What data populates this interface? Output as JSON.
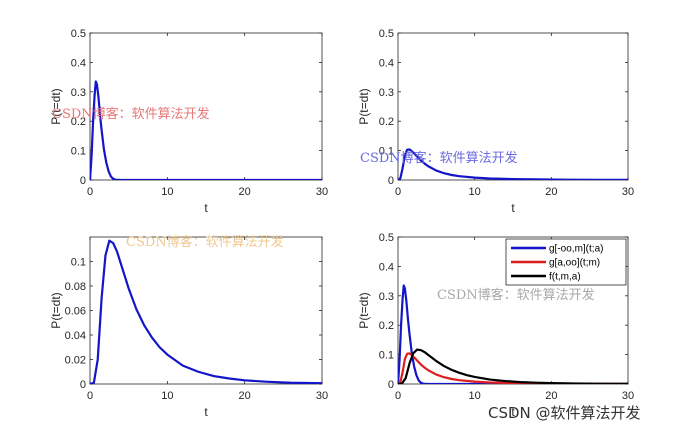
{
  "colors": {
    "blue": "#1414c8",
    "red": "#dc1e1e",
    "black": "#000000",
    "axis": "#262626",
    "wm_red": "#e87878",
    "wm_blue": "#6a6ae0",
    "wm_yellow": "#f0c890",
    "wm_gray": "#a8a8a8"
  },
  "watermarks": [
    {
      "text": "CSDN博客：软件算法开发",
      "color_key": "wm_red"
    },
    {
      "text": "CSDN博客：软件算法开发",
      "color_key": "wm_blue"
    },
    {
      "text": "CSDN博客：软件算法开发",
      "color_key": "wm_yellow"
    },
    {
      "text": "CSDN博客：软件算法开发",
      "color_key": "wm_gray"
    }
  ],
  "footer_watermark": "CSDN @软件算法开发",
  "chart_data": [
    {
      "type": "line",
      "xlabel": "t",
      "ylabel": "P(t=dt)",
      "xlim": [
        0,
        30
      ],
      "ylim": [
        0,
        0.5
      ],
      "xticks": [
        0,
        10,
        20,
        30
      ],
      "xtick_labels": [
        "0",
        "10",
        "20",
        "30"
      ],
      "yticks": [
        0,
        0.1,
        0.2,
        0.3,
        0.4,
        0.5
      ],
      "ytick_labels": [
        "0",
        "0.1",
        "0.2",
        "0.3",
        "0.4",
        "0.5"
      ],
      "grid": false,
      "series": [
        {
          "color_key": "blue",
          "x": [
            0,
            0.2,
            0.4,
            0.6,
            0.75,
            0.9,
            1.1,
            1.3,
            1.5,
            1.8,
            2.1,
            2.4,
            2.7,
            3.0,
            3.3,
            4,
            10,
            20,
            30
          ],
          "y": [
            0,
            0.08,
            0.2,
            0.29,
            0.335,
            0.325,
            0.28,
            0.22,
            0.17,
            0.105,
            0.06,
            0.03,
            0.012,
            0.004,
            0.001,
            0,
            0,
            0,
            0
          ]
        }
      ]
    },
    {
      "type": "line",
      "xlabel": "t",
      "ylabel": "P(t=dt)",
      "xlim": [
        0,
        30
      ],
      "ylim": [
        0,
        0.5
      ],
      "xticks": [
        0,
        10,
        20,
        30
      ],
      "xtick_labels": [
        "0",
        "10",
        "20",
        "30"
      ],
      "yticks": [
        0,
        0.1,
        0.2,
        0.3,
        0.4,
        0.5
      ],
      "ytick_labels": [
        "0",
        "0.1",
        "0.2",
        "0.3",
        "0.4",
        "0.5"
      ],
      "grid": false,
      "series": [
        {
          "color_key": "blue",
          "x": [
            0,
            0.3,
            0.6,
            0.9,
            1.2,
            1.5,
            1.8,
            2.2,
            2.6,
            3,
            3.5,
            4,
            5,
            6,
            7,
            8,
            10,
            12,
            15,
            18,
            22,
            26,
            30
          ],
          "y": [
            0,
            0.005,
            0.04,
            0.085,
            0.103,
            0.104,
            0.098,
            0.088,
            0.077,
            0.066,
            0.055,
            0.046,
            0.032,
            0.023,
            0.017,
            0.013,
            0.008,
            0.005,
            0.003,
            0.002,
            0.001,
            0.0005,
            0.0003
          ]
        }
      ]
    },
    {
      "type": "line",
      "xlabel": "t",
      "ylabel": "P(t=dt)",
      "xlim": [
        0,
        30
      ],
      "ylim": [
        0,
        0.12
      ],
      "xticks": [
        0,
        10,
        20,
        30
      ],
      "xtick_labels": [
        "0",
        "10",
        "20",
        "30"
      ],
      "yticks": [
        0,
        0.02,
        0.04,
        0.06,
        0.08,
        0.1
      ],
      "ytick_labels": [
        "0",
        "0.02",
        "0.04",
        "0.06",
        "0.08",
        "0.1"
      ],
      "grid": false,
      "series": [
        {
          "color_key": "blue",
          "x": [
            0,
            0.5,
            1,
            1.5,
            2,
            2.5,
            3,
            3.5,
            4,
            4.5,
            5,
            6,
            7,
            8,
            9,
            10,
            12,
            14,
            16,
            18,
            20,
            23,
            26,
            30
          ],
          "y": [
            0,
            0.001,
            0.02,
            0.07,
            0.105,
            0.117,
            0.115,
            0.108,
            0.098,
            0.088,
            0.078,
            0.061,
            0.048,
            0.038,
            0.03,
            0.024,
            0.015,
            0.01,
            0.0065,
            0.0045,
            0.003,
            0.0018,
            0.001,
            0.0006
          ]
        }
      ]
    },
    {
      "type": "line",
      "xlabel": "t",
      "ylabel": "P(t=dt)",
      "xlim": [
        0,
        30
      ],
      "ylim": [
        0,
        0.5
      ],
      "xticks": [
        0,
        10,
        20,
        30
      ],
      "xtick_labels": [
        "0",
        "10",
        "20",
        "30"
      ],
      "yticks": [
        0,
        0.1,
        0.2,
        0.3,
        0.4,
        0.5
      ],
      "ytick_labels": [
        "0",
        "0.1",
        "0.2",
        "0.3",
        "0.4",
        "0.5"
      ],
      "grid": false,
      "legend_position": "top-right",
      "series": [
        {
          "name": "g[-oo,m](t;a)",
          "color_key": "blue",
          "x": [
            0,
            0.2,
            0.4,
            0.6,
            0.75,
            0.9,
            1.1,
            1.3,
            1.5,
            1.8,
            2.1,
            2.4,
            2.7,
            3.0,
            3.3,
            4,
            10,
            20,
            30
          ],
          "y": [
            0,
            0.08,
            0.2,
            0.29,
            0.335,
            0.325,
            0.28,
            0.22,
            0.17,
            0.105,
            0.06,
            0.03,
            0.012,
            0.004,
            0.001,
            0,
            0,
            0,
            0
          ]
        },
        {
          "name": "g[a,oo](t;m)",
          "color_key": "red",
          "x": [
            0,
            0.3,
            0.6,
            0.9,
            1.2,
            1.5,
            1.8,
            2.2,
            2.6,
            3,
            3.5,
            4,
            5,
            6,
            7,
            8,
            10,
            12,
            15,
            18,
            22,
            26,
            30
          ],
          "y": [
            0,
            0.005,
            0.04,
            0.085,
            0.103,
            0.104,
            0.098,
            0.088,
            0.077,
            0.066,
            0.055,
            0.046,
            0.032,
            0.023,
            0.017,
            0.013,
            0.008,
            0.005,
            0.003,
            0.002,
            0.001,
            0.0005,
            0.0003
          ]
        },
        {
          "name": "f(t,m,a)",
          "color_key": "black",
          "x": [
            0,
            0.5,
            1,
            1.5,
            2,
            2.5,
            3,
            3.5,
            4,
            4.5,
            5,
            6,
            7,
            8,
            9,
            10,
            12,
            14,
            16,
            18,
            20,
            23,
            26,
            30
          ],
          "y": [
            0,
            0.001,
            0.02,
            0.07,
            0.105,
            0.117,
            0.115,
            0.108,
            0.098,
            0.088,
            0.078,
            0.061,
            0.048,
            0.038,
            0.03,
            0.024,
            0.015,
            0.01,
            0.0065,
            0.0045,
            0.003,
            0.0018,
            0.001,
            0.0006
          ]
        }
      ]
    }
  ]
}
